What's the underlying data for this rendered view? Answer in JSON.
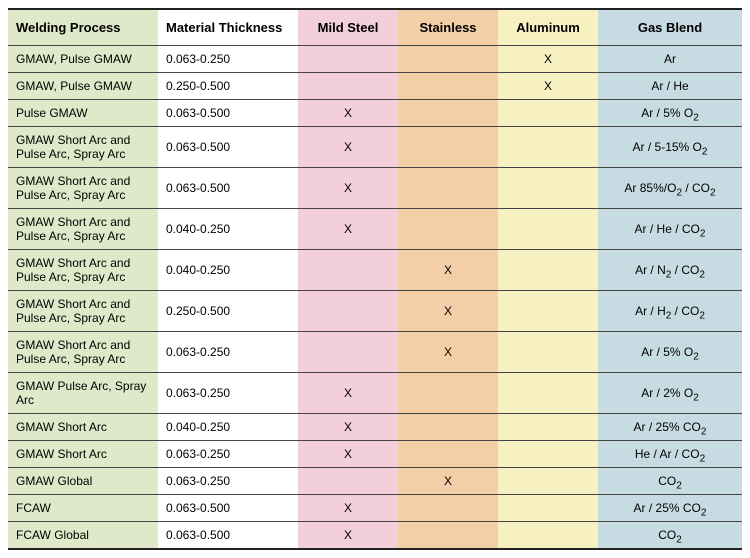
{
  "table": {
    "columns": [
      {
        "key": "process",
        "label": "Welding Process",
        "class": "col-process"
      },
      {
        "key": "thickness",
        "label": "Material Thickness",
        "class": "col-thickness"
      },
      {
        "key": "mild",
        "label": "Mild Steel",
        "class": "col-mild"
      },
      {
        "key": "stainless",
        "label": "Stainless",
        "class": "col-stainless"
      },
      {
        "key": "aluminum",
        "label": "Aluminum",
        "class": "col-aluminum"
      },
      {
        "key": "gas",
        "label": "Gas Blend",
        "class": "col-gas"
      }
    ],
    "rows": [
      {
        "process": "GMAW, Pulse GMAW",
        "thickness": "0.063-0.250",
        "mild": "",
        "stainless": "",
        "aluminum": "X",
        "gas": "Ar"
      },
      {
        "process": "GMAW, Pulse GMAW",
        "thickness": "0.250-0.500",
        "mild": "",
        "stainless": "",
        "aluminum": "X",
        "gas": "Ar / He"
      },
      {
        "process": "Pulse GMAW",
        "thickness": "0.063-0.500",
        "mild": "X",
        "stainless": "",
        "aluminum": "",
        "gas": "Ar / 5% O<sub>2</sub>"
      },
      {
        "process": "GMAW Short Arc and Pulse Arc, Spray Arc",
        "thickness": "0.063-0.500",
        "mild": "X",
        "stainless": "",
        "aluminum": "",
        "gas": "Ar / 5-15% O<sub>2</sub>"
      },
      {
        "process": "GMAW Short Arc and Pulse Arc, Spray Arc",
        "thickness": "0.063-0.500",
        "mild": "X",
        "stainless": "",
        "aluminum": "",
        "gas": "Ar 85%/O<sub>2</sub> / CO<sub>2</sub>"
      },
      {
        "process": "GMAW Short Arc and Pulse Arc, Spray Arc",
        "thickness": "0.040-0.250",
        "mild": "X",
        "stainless": "",
        "aluminum": "",
        "gas": "Ar / He / CO<sub>2</sub>"
      },
      {
        "process": "GMAW Short Arc and Pulse Arc, Spray Arc",
        "thickness": "0.040-0.250",
        "mild": "",
        "stainless": "X",
        "aluminum": "",
        "gas": "Ar / N<sub>2</sub> / CO<sub>2</sub>"
      },
      {
        "process": "GMAW Short Arc and Pulse Arc, Spray Arc",
        "thickness": "0.250-0.500",
        "mild": "",
        "stainless": "X",
        "aluminum": "",
        "gas": "Ar / H<sub>2</sub> / CO<sub>2</sub>"
      },
      {
        "process": "GMAW Short Arc and Pulse Arc, Spray Arc",
        "thickness": "0.063-0.250",
        "mild": "",
        "stainless": "X",
        "aluminum": "",
        "gas": "Ar / 5% O<sub>2</sub>"
      },
      {
        "process": "GMAW Pulse Arc, Spray Arc",
        "thickness": "0.063-0.250",
        "mild": "X",
        "stainless": "",
        "aluminum": "",
        "gas": "Ar / 2% O<sub>2</sub>"
      },
      {
        "process": "GMAW Short Arc",
        "thickness": "0.040-0.250",
        "mild": "X",
        "stainless": "",
        "aluminum": "",
        "gas": "Ar / 25% CO<sub>2</sub>"
      },
      {
        "process": "GMAW Short Arc",
        "thickness": "0.063-0.250",
        "mild": "X",
        "stainless": "",
        "aluminum": "",
        "gas": "He / Ar / CO<sub>2</sub>"
      },
      {
        "process": "GMAW Global",
        "thickness": "0.063-0.250",
        "mild": "",
        "stainless": "X",
        "aluminum": "",
        "gas": "CO<sub>2</sub>"
      },
      {
        "process": "FCAW",
        "thickness": "0.063-0.500",
        "mild": "X",
        "stainless": "",
        "aluminum": "",
        "gas": "Ar / 25% CO<sub>2</sub>"
      },
      {
        "process": "FCAW Global",
        "thickness": "0.063-0.500",
        "mild": "X",
        "stainless": "",
        "aluminum": "",
        "gas": "CO<sub>2</sub>"
      }
    ],
    "colors": {
      "process_bg": "#dfe9c9",
      "thickness_bg": "#ffffff",
      "mild_bg": "#f2cfd9",
      "stainless_bg": "#f2cfa7",
      "aluminum_bg": "#f7f1c2",
      "gas_bg": "#c7dbe3",
      "border": "#444444"
    },
    "font_size_body": 12,
    "font_size_header": 13
  }
}
